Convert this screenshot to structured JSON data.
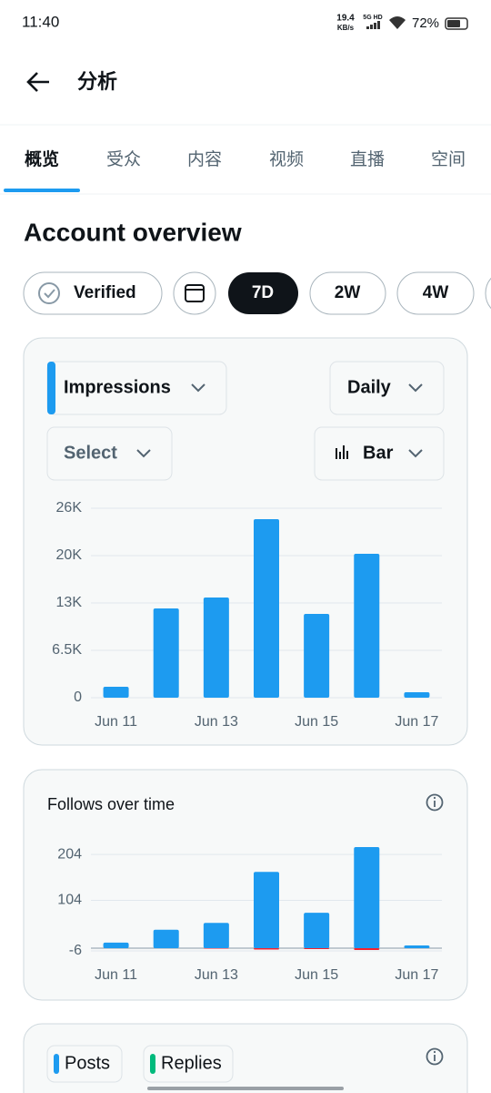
{
  "status_bar": {
    "time": "11:40",
    "speed": "19.4",
    "speed_unit": "KB/s",
    "network": "5G HD",
    "battery": "72%"
  },
  "header": {
    "title": "分析"
  },
  "tabs": [
    "概览",
    "受众",
    "内容",
    "视频",
    "直播",
    "空间"
  ],
  "page_title": "Account overview",
  "chips": [
    "Verified",
    "7D",
    "2W",
    "4W"
  ],
  "controls": {
    "metric": "Impressions",
    "interval": "Daily",
    "compare": "Select",
    "chart_style": "Bar"
  },
  "chart_data": [
    {
      "type": "bar",
      "categories": [
        "Jun 11",
        null,
        "Jun 13",
        null,
        "Jun 15",
        null,
        "Jun 17"
      ],
      "values": [
        1500,
        12250,
        13750,
        24500,
        11500,
        19750,
        750
      ],
      "color": "#1d9bf0",
      "ylim": [
        0,
        26000
      ],
      "yticks": [
        0,
        {
          "value": 6500,
          "label": "6.5K"
        },
        {
          "value": 13000,
          "label": "13K"
        },
        {
          "value": 19500,
          "label": "20K"
        },
        {
          "value": 26000,
          "label": "26K"
        }
      ],
      "grid": true
    },
    {
      "type": "bar",
      "title": "Follows over time",
      "categories": [
        "Jun 11",
        null,
        "Jun 13",
        null,
        "Jun 15",
        null,
        "Jun 17"
      ],
      "series": [
        {
          "color": "#1d9bf0",
          "values": [
            12,
            40,
            55,
            166,
            77,
            220,
            6
          ]
        },
        {
          "color": "#f4212e",
          "values": [
            0,
            0,
            -1,
            -3,
            -2,
            -4,
            0
          ]
        }
      ],
      "ylim": [
        -6,
        220
      ],
      "yticks": [
        -6,
        104,
        204
      ],
      "grid": true
    }
  ],
  "bottom_card": {
    "legend": [
      "Posts",
      "Replies"
    ]
  }
}
